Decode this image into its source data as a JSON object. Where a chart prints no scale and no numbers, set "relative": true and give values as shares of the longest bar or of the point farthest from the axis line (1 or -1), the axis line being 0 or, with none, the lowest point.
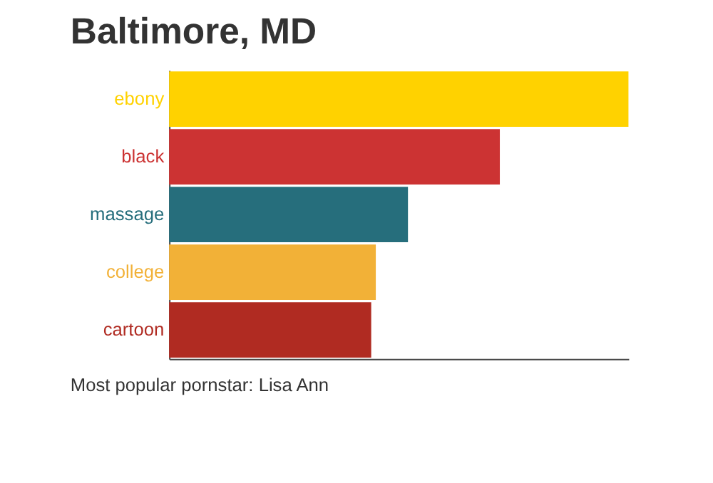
{
  "chart_data": {
    "type": "bar",
    "orientation": "horizontal",
    "relative": true,
    "title": "Baltimore, MD",
    "categories": [
      "ebony",
      "black",
      "massage",
      "college",
      "cartoon"
    ],
    "values": [
      1,
      0.72,
      0.52,
      0.45,
      0.44
    ],
    "colors": [
      "#ffd200",
      "#cc3333",
      "#266e7c",
      "#f2b137",
      "#b02b22"
    ],
    "tick_labels": "y",
    "annotations": [
      "Most popular pornstar: Lisa Ann"
    ]
  }
}
